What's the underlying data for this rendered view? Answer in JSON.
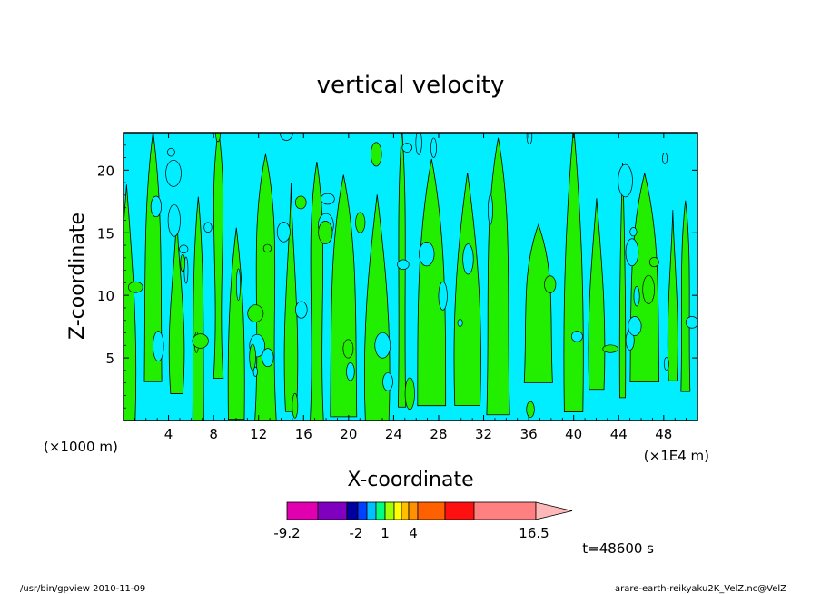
{
  "chart_data": {
    "type": "heatmap",
    "title": "vertical velocity",
    "xlabel": "X-coordinate",
    "ylabel": "Z-coordinate",
    "x_unit_left": "(×1000 m)",
    "x_unit_right": "(×1E4 m)",
    "xlim": [
      0,
      51
    ],
    "ylim": [
      0,
      23
    ],
    "x_ticks": [
      4,
      8,
      12,
      16,
      20,
      24,
      28,
      32,
      36,
      40,
      44,
      48
    ],
    "x_tick_labels": [
      "4",
      "8",
      "12",
      "16",
      "20",
      "24",
      "28",
      "32",
      "36",
      "40",
      "44",
      "48"
    ],
    "y_ticks": [
      5,
      10,
      15,
      20
    ],
    "y_tick_labels": [
      "5",
      "10",
      "15",
      "20"
    ],
    "fill_colors": {
      "negative": "#00eeff",
      "positive": "#22ee00"
    },
    "colorbar": {
      "colors": [
        "#e000b0",
        "#8000c0",
        "#0000a0",
        "#0040ff",
        "#00c0ff",
        "#00ff80",
        "#a0ff00",
        "#ffff00",
        "#ffc000",
        "#ff9000",
        "#ff6000",
        "#ff1010",
        "#ff8080"
      ],
      "extend_color": "#ffb8b8",
      "labels": [
        "-9.2",
        "-2",
        "1",
        "4",
        "16.5"
      ]
    },
    "time_label": "t=48600 s"
  },
  "footer": {
    "left": "/usr/bin/gpview   2010-11-09",
    "right": "arare-earth-reikyaku2K_VelZ.nc@VelZ"
  }
}
